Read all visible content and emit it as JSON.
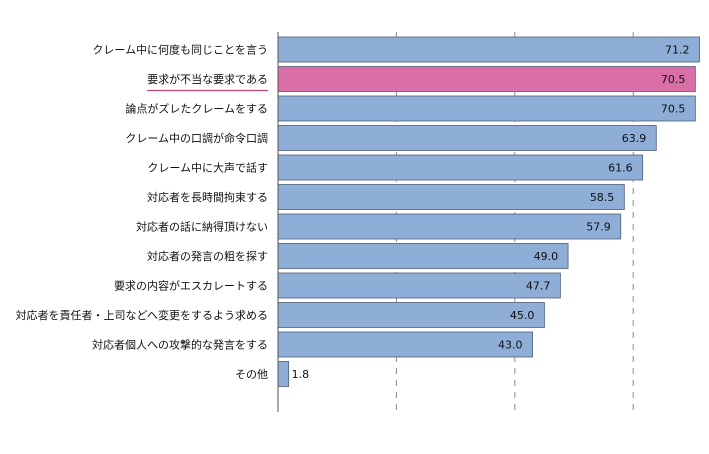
{
  "chart_data": {
    "type": "bar",
    "orientation": "horizontal",
    "categories": [
      "クレーム中に何度も同じことを言う",
      "要求が不当な要求である",
      "論点がズレたクレームをする",
      "クレーム中の口調が命令口調",
      "クレーム中に大声で話す",
      "対応者を長時間拘束する",
      "対応者の話に納得頂けない",
      "対応者の発言の粗を探す",
      "要求の内容がエスカレートする",
      "対応者を責任者・上司などへ変更をするよう求める",
      "対応者個人への攻撃的な発言をする",
      "その他"
    ],
    "values": [
      71.2,
      70.5,
      70.5,
      63.9,
      61.6,
      58.5,
      57.9,
      49.0,
      47.7,
      45.0,
      43.0,
      1.8
    ],
    "value_labels": [
      "71.2",
      "70.5",
      "70.5",
      "63.9",
      "61.6",
      "58.5",
      "57.9",
      "49.0",
      "47.7",
      "45.0",
      "43.0",
      "1.8"
    ],
    "highlight_index": 1,
    "xlim": [
      0,
      72
    ],
    "gridlines": [
      20,
      40,
      60
    ],
    "grid": true,
    "legend": "none",
    "colors": {
      "bar": "#8eaed8",
      "bar_stroke": "#4f5f78",
      "highlight": "#d96fa6",
      "highlight_underline": "#c2437e",
      "grid": "#8a8a8a",
      "axis": "#555555",
      "text": "#111111"
    }
  }
}
